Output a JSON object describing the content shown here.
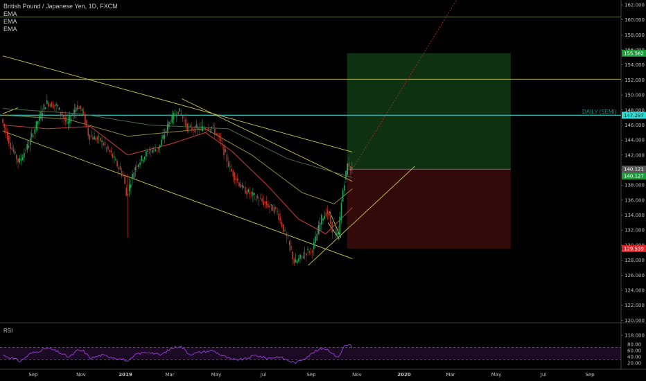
{
  "legend": {
    "title": "British Pound / Japanese Yen, 1D, FXCM",
    "indicators": [
      "EMA",
      "EMA",
      "EMA"
    ]
  },
  "annotation": "DAILY (SEMI)",
  "rsi_label": "RSI",
  "chart_data": [
    {
      "type": "candlestick",
      "title": "British Pound / Japanese Yen, 1D, FXCM",
      "ylim": [
        116,
        163
      ],
      "y_ticks": [
        118,
        120,
        122,
        124,
        126,
        128,
        130,
        132,
        134,
        136,
        138,
        140,
        142,
        144,
        146,
        148,
        150,
        152,
        154,
        156,
        158,
        160,
        162
      ],
      "x_ticks": [
        "Sep",
        "Nov",
        "2019",
        "Mar",
        "May",
        "Jul",
        "Sep",
        "Nov",
        "2020",
        "Mar",
        "May",
        "Jul",
        "Sep"
      ],
      "price_badges": [
        {
          "value": "155.562",
          "color": "#1e9c3c",
          "text_color": "#ffffff"
        },
        {
          "value": "147.297",
          "color": "#2fd9d4",
          "text_color": "#003333"
        },
        {
          "value": "140.121",
          "color": "#555555",
          "text_color": "#ffffff"
        },
        {
          "value": "140.127",
          "color": "#1e9c3c",
          "text_color": "#ffffff"
        },
        {
          "value": "129.539",
          "color": "#e0242a",
          "text_color": "#ffffff"
        }
      ],
      "price_path": [
        {
          "t": "2018-07-23",
          "v": 146.8
        },
        {
          "t": "2018-08-05",
          "v": 143.0
        },
        {
          "t": "2018-08-15",
          "v": 141.0
        },
        {
          "t": "2018-08-28",
          "v": 143.5
        },
        {
          "t": "2018-09-10",
          "v": 146.8
        },
        {
          "t": "2018-09-20",
          "v": 149.0
        },
        {
          "t": "2018-10-04",
          "v": 148.5
        },
        {
          "t": "2018-10-18",
          "v": 146.0
        },
        {
          "t": "2018-10-29",
          "v": 148.5
        },
        {
          "t": "2018-11-06",
          "v": 148.0
        },
        {
          "t": "2018-11-15",
          "v": 144.5
        },
        {
          "t": "2018-11-30",
          "v": 144.0
        },
        {
          "t": "2018-12-15",
          "v": 142.0
        },
        {
          "t": "2018-12-31",
          "v": 139.0
        },
        {
          "t": "2019-01-03",
          "v": 136.5
        },
        {
          "t": "2019-01-15",
          "v": 140.5
        },
        {
          "t": "2019-02-01",
          "v": 142.5
        },
        {
          "t": "2019-02-15",
          "v": 143.0
        },
        {
          "t": "2019-03-01",
          "v": 146.5
        },
        {
          "t": "2019-03-13",
          "v": 148.0
        },
        {
          "t": "2019-03-25",
          "v": 145.5
        },
        {
          "t": "2019-04-10",
          "v": 145.5
        },
        {
          "t": "2019-04-25",
          "v": 145.8
        },
        {
          "t": "2019-05-06",
          "v": 144.0
        },
        {
          "t": "2019-05-20",
          "v": 140.0
        },
        {
          "t": "2019-06-05",
          "v": 137.5
        },
        {
          "t": "2019-06-20",
          "v": 136.5
        },
        {
          "t": "2019-07-05",
          "v": 135.5
        },
        {
          "t": "2019-07-20",
          "v": 134.5
        },
        {
          "t": "2019-08-05",
          "v": 130.0
        },
        {
          "t": "2019-08-12",
          "v": 127.5
        },
        {
          "t": "2019-08-26",
          "v": 129.0
        },
        {
          "t": "2019-09-05",
          "v": 129.5
        },
        {
          "t": "2019-09-16",
          "v": 133.5
        },
        {
          "t": "2019-09-24",
          "v": 134.5
        },
        {
          "t": "2019-10-01",
          "v": 132.0
        },
        {
          "t": "2019-10-08",
          "v": 131.0
        },
        {
          "t": "2019-10-14",
          "v": 137.0
        },
        {
          "t": "2019-10-21",
          "v": 141.0
        },
        {
          "t": "2019-10-25",
          "v": 140.1
        }
      ],
      "ema_series": [
        {
          "color": "#d23a3a",
          "values": [
            {
              "t": "2018-07-23",
              "v": 146.0
            },
            {
              "t": "2018-09-20",
              "v": 145.5
            },
            {
              "t": "2018-11-15",
              "v": 145.8
            },
            {
              "t": "2019-01-03",
              "v": 142.0
            },
            {
              "t": "2019-03-01",
              "v": 143.5
            },
            {
              "t": "2019-04-15",
              "v": 145.0
            },
            {
              "t": "2019-05-20",
              "v": 142.5
            },
            {
              "t": "2019-07-05",
              "v": 138.0
            },
            {
              "t": "2019-08-15",
              "v": 133.5
            },
            {
              "t": "2019-09-20",
              "v": 131.5
            },
            {
              "t": "2019-10-25",
              "v": 135.0
            }
          ]
        },
        {
          "color": "#8a8a3a",
          "values": [
            {
              "t": "2018-07-23",
              "v": 147.3
            },
            {
              "t": "2018-10-15",
              "v": 146.8
            },
            {
              "t": "2019-01-03",
              "v": 144.5
            },
            {
              "t": "2019-04-15",
              "v": 145.5
            },
            {
              "t": "2019-06-15",
              "v": 142.0
            },
            {
              "t": "2019-08-20",
              "v": 137.0
            },
            {
              "t": "2019-10-01",
              "v": 135.5
            },
            {
              "t": "2019-10-25",
              "v": 137.5
            }
          ]
        },
        {
          "color": "#4d6a4d",
          "values": [
            {
              "t": "2018-07-23",
              "v": 148.2
            },
            {
              "t": "2018-11-01",
              "v": 147.5
            },
            {
              "t": "2019-02-01",
              "v": 146.0
            },
            {
              "t": "2019-05-15",
              "v": 145.5
            },
            {
              "t": "2019-08-01",
              "v": 141.5
            },
            {
              "t": "2019-10-25",
              "v": 139.0
            }
          ]
        }
      ],
      "trend_lines": [
        {
          "color": "#c8c84a",
          "from": {
            "t": "2018-07-23",
            "v": 145.2
          },
          "to": {
            "t": "2019-10-25",
            "v": 128.2
          }
        },
        {
          "color": "#c8c84a",
          "from": {
            "t": "2018-07-23",
            "v": 155.2
          },
          "to": {
            "t": "2019-10-25",
            "v": 142.4
          }
        },
        {
          "color": "#c8c84a",
          "from": {
            "t": "2019-03-15",
            "v": 149.5
          },
          "to": {
            "t": "2019-10-25",
            "v": 138.5
          }
        },
        {
          "color": "#c8c84a",
          "from": {
            "t": "2019-08-28",
            "v": 127.3
          },
          "to": {
            "t": "2020-01-15",
            "v": 140.5
          }
        },
        {
          "color": "#c8c84a",
          "from": {
            "t": "2018-07-23",
            "v": 147.5
          },
          "to": {
            "t": "2018-08-12",
            "v": 148.3
          }
        },
        {
          "color": "#c8c84a",
          "from": {
            "t": "2019-09-25",
            "v": 134.5
          },
          "to": {
            "t": "2019-10-10",
            "v": 131.0
          }
        },
        {
          "color": "#c8c84a",
          "from": {
            "t": "2019-09-23",
            "v": 133.0
          },
          "to": {
            "t": "2019-10-08",
            "v": 130.8
          }
        }
      ],
      "horizontal_lines": [
        {
          "v": 160.4,
          "color": "#7aa05a"
        },
        {
          "v": 152.1,
          "color": "#c8c84a"
        },
        {
          "v": 147.3,
          "color": "#2fb0ae"
        }
      ],
      "projection": {
        "color": "#b02a2a",
        "from": {
          "t": "2019-10-25",
          "v": 140.1
        },
        "to": {
          "t": "2020-03-15",
          "v": 163.5
        }
      },
      "position_box": {
        "start": "2019-10-18",
        "end": "2020-05-20",
        "entry": 140.12,
        "target": 155.56,
        "stop": 129.54
      }
    },
    {
      "type": "line",
      "title": "RSI",
      "ylim": [
        15,
        82
      ],
      "y_ticks": [
        20.0,
        40.0,
        60.0,
        80.0
      ],
      "levels": [
        70,
        30
      ],
      "series": [
        {
          "color": "#9b3fd4",
          "values": [
            {
              "t": "2018-07-23",
              "v": 45
            },
            {
              "t": "2018-08-05",
              "v": 35
            },
            {
              "t": "2018-08-15",
              "v": 25
            },
            {
              "t": "2018-08-28",
              "v": 50
            },
            {
              "t": "2018-09-10",
              "v": 60
            },
            {
              "t": "2018-09-20",
              "v": 68
            },
            {
              "t": "2018-10-04",
              "v": 55
            },
            {
              "t": "2018-10-18",
              "v": 38
            },
            {
              "t": "2018-10-29",
              "v": 60
            },
            {
              "t": "2018-11-06",
              "v": 58
            },
            {
              "t": "2018-11-15",
              "v": 35
            },
            {
              "t": "2018-11-30",
              "v": 45
            },
            {
              "t": "2018-12-15",
              "v": 38
            },
            {
              "t": "2018-12-31",
              "v": 30
            },
            {
              "t": "2019-01-03",
              "v": 22
            },
            {
              "t": "2019-01-15",
              "v": 50
            },
            {
              "t": "2019-02-01",
              "v": 55
            },
            {
              "t": "2019-02-15",
              "v": 45
            },
            {
              "t": "2019-03-01",
              "v": 66
            },
            {
              "t": "2019-03-13",
              "v": 75
            },
            {
              "t": "2019-03-25",
              "v": 48
            },
            {
              "t": "2019-04-10",
              "v": 55
            },
            {
              "t": "2019-04-25",
              "v": 60
            },
            {
              "t": "2019-05-06",
              "v": 45
            },
            {
              "t": "2019-05-20",
              "v": 30
            },
            {
              "t": "2019-06-05",
              "v": 32
            },
            {
              "t": "2019-06-20",
              "v": 45
            },
            {
              "t": "2019-07-05",
              "v": 35
            },
            {
              "t": "2019-07-20",
              "v": 40
            },
            {
              "t": "2019-08-05",
              "v": 25
            },
            {
              "t": "2019-08-12",
              "v": 20
            },
            {
              "t": "2019-08-26",
              "v": 40
            },
            {
              "t": "2019-09-05",
              "v": 55
            },
            {
              "t": "2019-09-16",
              "v": 68
            },
            {
              "t": "2019-09-24",
              "v": 62
            },
            {
              "t": "2019-10-01",
              "v": 45
            },
            {
              "t": "2019-10-08",
              "v": 40
            },
            {
              "t": "2019-10-14",
              "v": 76
            },
            {
              "t": "2019-10-21",
              "v": 80
            },
            {
              "t": "2019-10-25",
              "v": 70
            }
          ]
        }
      ]
    }
  ]
}
